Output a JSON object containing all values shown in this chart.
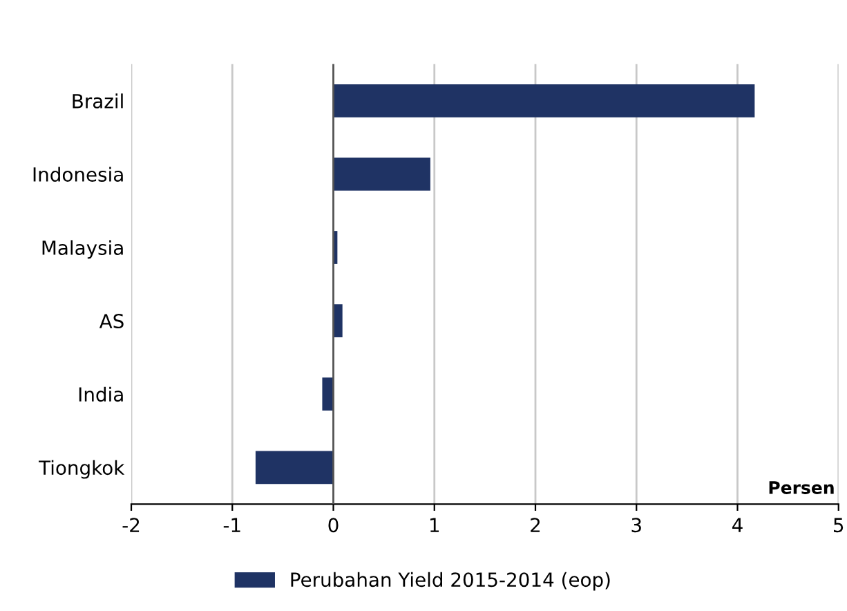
{
  "chart_data": {
    "type": "bar",
    "orientation": "horizontal",
    "xlabel": "Persen",
    "categories": [
      "Brazil",
      "Indonesia",
      "Malaysia",
      "AS",
      "India",
      "Tiongkok"
    ],
    "series": [
      {
        "name": "Perubahan Yield 2015-2014 (eop)",
        "color": "#1f3364",
        "values": [
          4.17,
          0.96,
          0.04,
          0.09,
          -0.11,
          -0.77
        ]
      }
    ],
    "xlim": [
      -2,
      5
    ],
    "xticks": [
      -2,
      -1,
      0,
      1,
      2,
      3,
      4,
      5
    ],
    "grid": "x",
    "legend": "bottom"
  }
}
